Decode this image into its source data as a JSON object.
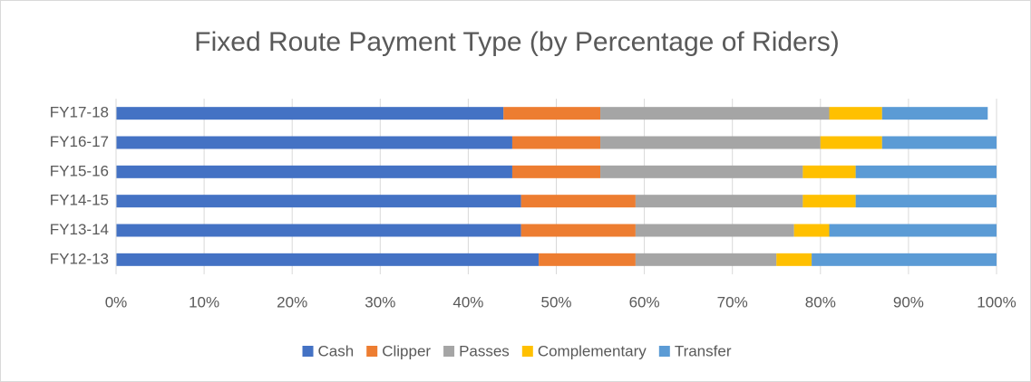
{
  "chart_data": {
    "type": "stacked-bar-horizontal",
    "title": "Fixed Route Payment Type (by Percentage of Riders)",
    "categories": [
      "FY17-18",
      "FY16-17",
      "FY15-16",
      "FY14-15",
      "FY13-14",
      "FY12-13"
    ],
    "series": [
      {
        "name": "Cash",
        "color": "#4472c4",
        "values": [
          44,
          45,
          45,
          46,
          46,
          48
        ]
      },
      {
        "name": "Clipper",
        "color": "#ed7d31",
        "values": [
          11,
          10,
          10,
          13,
          13,
          11
        ]
      },
      {
        "name": "Passes",
        "color": "#a5a5a5",
        "values": [
          26,
          25,
          23,
          19,
          18,
          16
        ]
      },
      {
        "name": "Complementary",
        "color": "#ffc000",
        "values": [
          6,
          7,
          6,
          6,
          4,
          4
        ]
      },
      {
        "name": "Transfer",
        "color": "#5b9bd5",
        "values": [
          12,
          13,
          16,
          16,
          19,
          21
        ]
      }
    ],
    "xlim": [
      0,
      100
    ],
    "xticks": [
      {
        "value": 0,
        "label": "0%"
      },
      {
        "value": 10,
        "label": "10%"
      },
      {
        "value": 20,
        "label": "20%"
      },
      {
        "value": 30,
        "label": "30%"
      },
      {
        "value": 40,
        "label": "40%"
      },
      {
        "value": 50,
        "label": "50%"
      },
      {
        "value": 60,
        "label": "60%"
      },
      {
        "value": 70,
        "label": "70%"
      },
      {
        "value": 80,
        "label": "80%"
      },
      {
        "value": 90,
        "label": "90%"
      },
      {
        "value": 100,
        "label": "100%"
      }
    ],
    "grid": true,
    "legend": "bottom"
  }
}
